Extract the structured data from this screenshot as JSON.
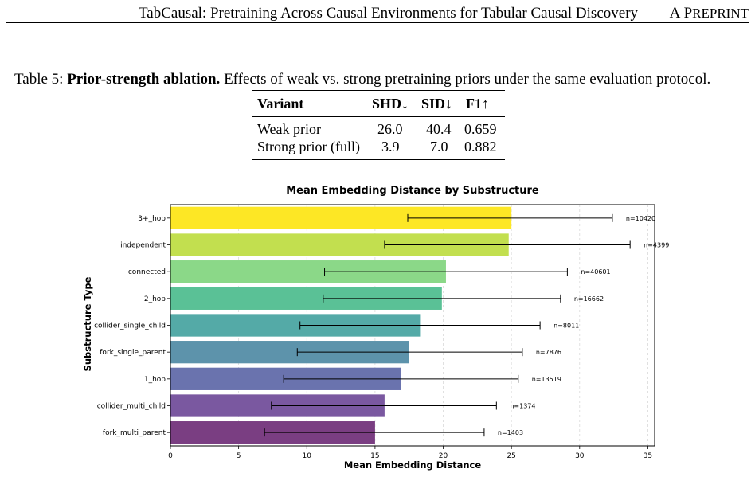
{
  "header": {
    "title": "TabCausal: Pretraining Across Causal Environments for Tabular Causal Discovery",
    "tag_initial_a": "A",
    "tag_initial_p": "P",
    "tag_rest": "REPRINT"
  },
  "table": {
    "caption_label": "Table 5:",
    "caption_bold": "Prior-strength ablation.",
    "caption_text": "Effects of weak vs. strong pretraining priors under the same evaluation protocol.",
    "columns": [
      "Variant",
      "SHD↓",
      "SID↓",
      "F1↑"
    ],
    "rows": [
      {
        "variant": "Weak prior",
        "shd": "26.0",
        "sid": "40.4",
        "f1": "0.659"
      },
      {
        "variant": "Strong prior (full)",
        "shd": "3.9",
        "sid": "7.0",
        "f1": "0.882"
      }
    ]
  },
  "chart_data": {
    "type": "bar",
    "orientation": "horizontal",
    "title": "Mean Embedding Distance by Substructure",
    "xlabel": "Mean Embedding Distance",
    "ylabel": "Substructure Type",
    "xlim": [
      0,
      35.5
    ],
    "xticks": [
      0,
      5,
      10,
      15,
      20,
      25,
      30,
      35
    ],
    "grid": "vertical-dashed",
    "colors": [
      "#fde725",
      "#c2df4f",
      "#8bd888",
      "#5ac196",
      "#54aaa7",
      "#5d93ab",
      "#6a73ae",
      "#7a58a0",
      "#7a3e82"
    ],
    "bars": [
      {
        "label": "3+_hop",
        "value": 25.0,
        "err_low": 17.4,
        "err_high": 32.4,
        "n": "n=10420"
      },
      {
        "label": "independent",
        "value": 24.8,
        "err_low": 15.7,
        "err_high": 33.7,
        "n": "n=4399"
      },
      {
        "label": "connected",
        "value": 20.2,
        "err_low": 11.3,
        "err_high": 29.1,
        "n": "n=40601"
      },
      {
        "label": "2_hop",
        "value": 19.9,
        "err_low": 11.2,
        "err_high": 28.6,
        "n": "n=16662"
      },
      {
        "label": "collider_single_child",
        "value": 18.3,
        "err_low": 9.5,
        "err_high": 27.1,
        "n": "n=8011"
      },
      {
        "label": "fork_single_parent",
        "value": 17.5,
        "err_low": 9.3,
        "err_high": 25.8,
        "n": "n=7876"
      },
      {
        "label": "1_hop",
        "value": 16.9,
        "err_low": 8.3,
        "err_high": 25.5,
        "n": "n=13519"
      },
      {
        "label": "collider_multi_child",
        "value": 15.7,
        "err_low": 7.4,
        "err_high": 23.9,
        "n": "n=1374"
      },
      {
        "label": "fork_multi_parent",
        "value": 15.0,
        "err_low": 6.9,
        "err_high": 23.0,
        "n": "n=1403"
      }
    ]
  }
}
